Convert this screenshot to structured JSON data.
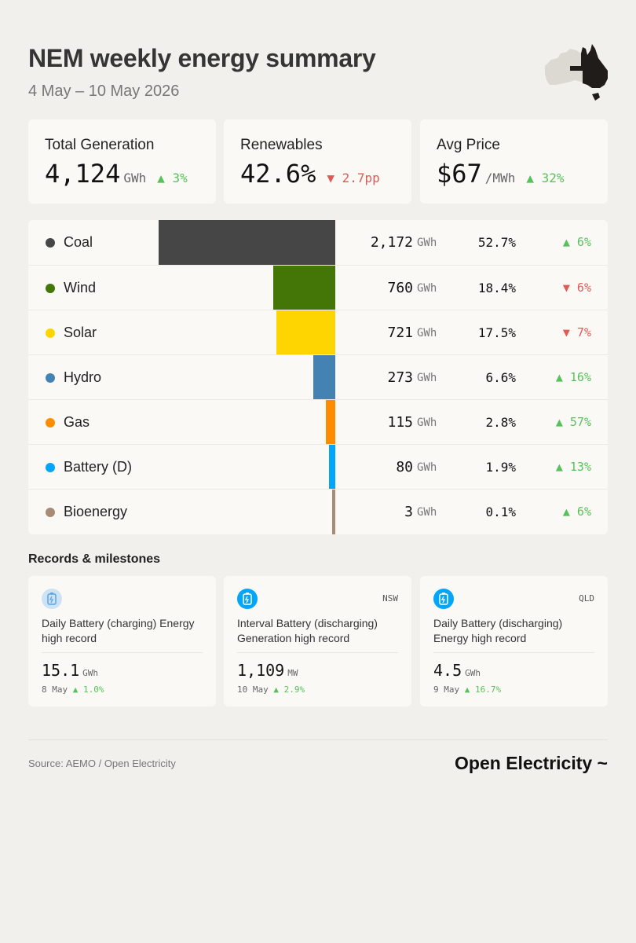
{
  "header": {
    "title": "NEM weekly energy summary",
    "date_range": "4 May – 10 May 2026"
  },
  "map": {
    "icon": "australia-map-icon",
    "highlight_color": "#1f1c1a",
    "base_color": "#dcd8d2"
  },
  "kpis": [
    {
      "label": "Total Generation",
      "value": "4,124",
      "unit": "GWh",
      "change": "▲ 3%",
      "direction": "up"
    },
    {
      "label": "Renewables",
      "value": "42.6%",
      "unit": "",
      "change": "▼ 2.7pp",
      "direction": "down"
    },
    {
      "label": "Avg Price",
      "value": "$67",
      "unit": "/MWh",
      "change": "▲ 32%",
      "direction": "up"
    }
  ],
  "chart_data": {
    "type": "bar",
    "orientation": "horizontal",
    "categories": [
      "Coal",
      "Wind",
      "Solar",
      "Hydro",
      "Gas",
      "Battery (D)",
      "Bioenergy"
    ],
    "values": [
      2172,
      760,
      721,
      273,
      115,
      80,
      3
    ],
    "unit": "GWh",
    "shares": [
      "52.7%",
      "18.4%",
      "17.5%",
      "6.6%",
      "2.8%",
      "1.9%",
      "0.1%"
    ],
    "changes": [
      "▲ 6%",
      "▼ 6%",
      "▼ 7%",
      "▲ 16%",
      "▲ 57%",
      "▲ 13%",
      "▲ 6%"
    ],
    "change_directions": [
      "up",
      "down",
      "down",
      "up",
      "up",
      "up",
      "up"
    ],
    "colors": [
      "#464646",
      "#437607",
      "#fed500",
      "#4582b4",
      "#fe8c00",
      "#01a5f9",
      "#a78b77"
    ]
  },
  "fuel_table": {
    "rows": [
      {
        "fuel": "Coal",
        "energy": "2,172",
        "unit": "GWh",
        "share": "52.7%",
        "change": "▲ 6%"
      },
      {
        "fuel": "Wind",
        "energy": "760",
        "unit": "GWh",
        "share": "18.4%",
        "change": "▼ 6%"
      },
      {
        "fuel": "Solar",
        "energy": "721",
        "unit": "GWh",
        "share": "17.5%",
        "change": "▼ 7%"
      },
      {
        "fuel": "Hydro",
        "energy": "273",
        "unit": "GWh",
        "share": "6.6%",
        "change": "▲ 16%"
      },
      {
        "fuel": "Gas",
        "energy": "115",
        "unit": "GWh",
        "share": "2.8%",
        "change": "▲ 57%"
      },
      {
        "fuel": "Battery (D)",
        "energy": "80",
        "unit": "GWh",
        "share": "1.9%",
        "change": "▲ 13%"
      },
      {
        "fuel": "Bioenergy",
        "energy": "3",
        "unit": "GWh",
        "share": "0.1%",
        "change": "▲ 6%"
      }
    ]
  },
  "records": {
    "title": "Records & milestones",
    "cards": [
      {
        "icon": "battery-charging-icon",
        "icon_bg": "#cde3f5",
        "region": "",
        "description": "Daily Battery (charging) Energy high record",
        "value": "15.1",
        "unit": "GWh",
        "date": "8 May",
        "change": "▲ 1.0%"
      },
      {
        "icon": "battery-discharging-icon",
        "icon_bg": "#01a5f9",
        "region": "NSW",
        "description": "Interval Battery (discharging) Generation high record",
        "value": "1,109",
        "unit": "MW",
        "date": "10 May",
        "change": "▲ 2.9%"
      },
      {
        "icon": "battery-discharging-icon",
        "icon_bg": "#01a5f9",
        "region": "QLD",
        "description": "Daily Battery (discharging) Energy high record",
        "value": "4.5",
        "unit": "GWh",
        "date": "9 May",
        "change": "▲ 16.7%"
      }
    ]
  },
  "footer": {
    "source": "Source: AEMO / Open Electricity",
    "brand": "Open Electricity ~"
  }
}
